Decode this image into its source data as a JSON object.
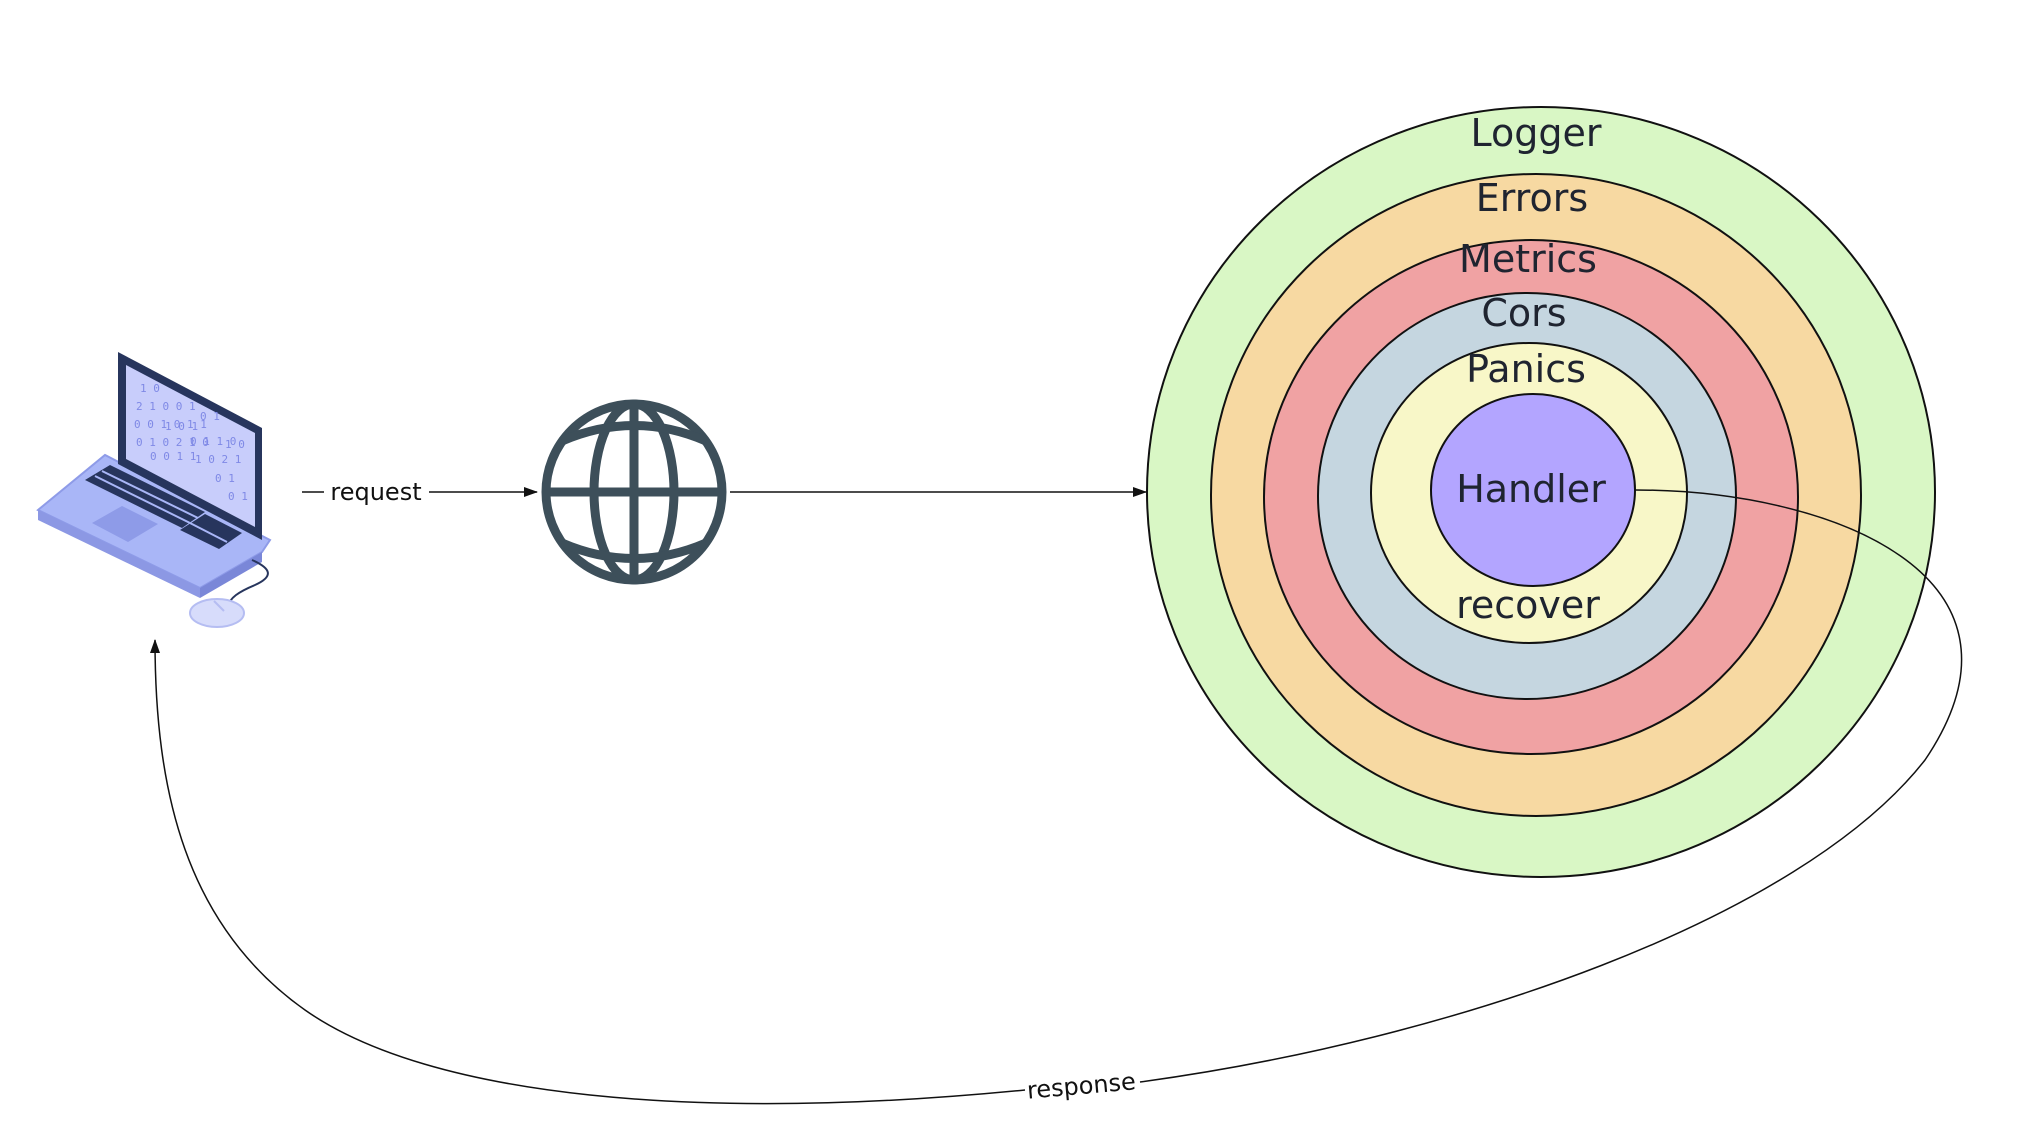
{
  "diagram": {
    "layers": [
      {
        "name": "Logger",
        "fill": "#d9f7c5"
      },
      {
        "name": "Errors",
        "fill": "#f7d9a2"
      },
      {
        "name": "Metrics",
        "fill": "#f0a2a3"
      },
      {
        "name": "Cors",
        "fill": "#c5d6e0"
      },
      {
        "name": "Panics",
        "fill": "#f8f7c8"
      }
    ],
    "inner_label": "recover",
    "core": {
      "name": "Handler",
      "fill": "#b3a5ff"
    },
    "edges": {
      "request_label": "request",
      "response_label": "response"
    },
    "icons": {
      "client": "laptop-icon",
      "network": "globe-icon",
      "peripheral": "mouse-icon"
    },
    "colors": {
      "globe": "#3d4f5a",
      "laptop_screen": "#c8cdfb",
      "laptop_body": "#a9b6f7",
      "laptop_frame": "#27355d",
      "stroke": "#111111"
    }
  }
}
